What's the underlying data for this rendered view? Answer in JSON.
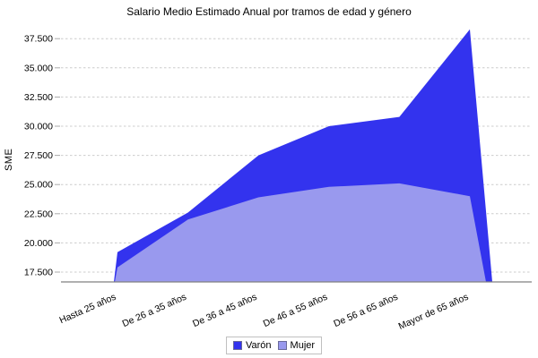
{
  "title": "Salario Medio Estimado Anual por tramos de edad y género",
  "chart_data": {
    "type": "area",
    "overlaid": true,
    "title": "Salario Medio Estimado Anual por tramos de edad y género",
    "ylabel": "SME",
    "xlabel": "",
    "categories": [
      "Hasta 25 años",
      "De 26 a 35 años",
      "De 36 a 45 años",
      "De 46 a 55 años",
      "De 56 a 65 años",
      "Mayor de 65 años"
    ],
    "series": [
      {
        "name": "Varón",
        "color": "#3333EE",
        "values": [
          19200,
          22600,
          27500,
          30000,
          30800,
          38300
        ]
      },
      {
        "name": "Mujer",
        "color": "#9999EE",
        "values": [
          17900,
          22000,
          23900,
          24800,
          25100,
          24000
        ]
      }
    ],
    "y_ticks": [
      17500,
      20000,
      22500,
      25000,
      27500,
      30000,
      32500,
      35000,
      37500
    ],
    "y_tick_labels": [
      "17.500",
      "20.000",
      "22.500",
      "25.000",
      "27.500",
      "30.000",
      "32.500",
      "35.000",
      "37.500"
    ],
    "ylim": [
      16650,
      38900
    ],
    "grid": "horizontal-dashed",
    "legend_position": "bottom-center",
    "colors": {
      "grid_line": "#cccccc",
      "tick_mark": "#aaaaaa",
      "axis_line": "#808080",
      "text": "#000000",
      "background": "#ffffff"
    }
  },
  "legend": {
    "items": [
      {
        "label": "Varón",
        "color": "#3333EE"
      },
      {
        "label": "Mujer",
        "color": "#9999EE"
      }
    ]
  }
}
